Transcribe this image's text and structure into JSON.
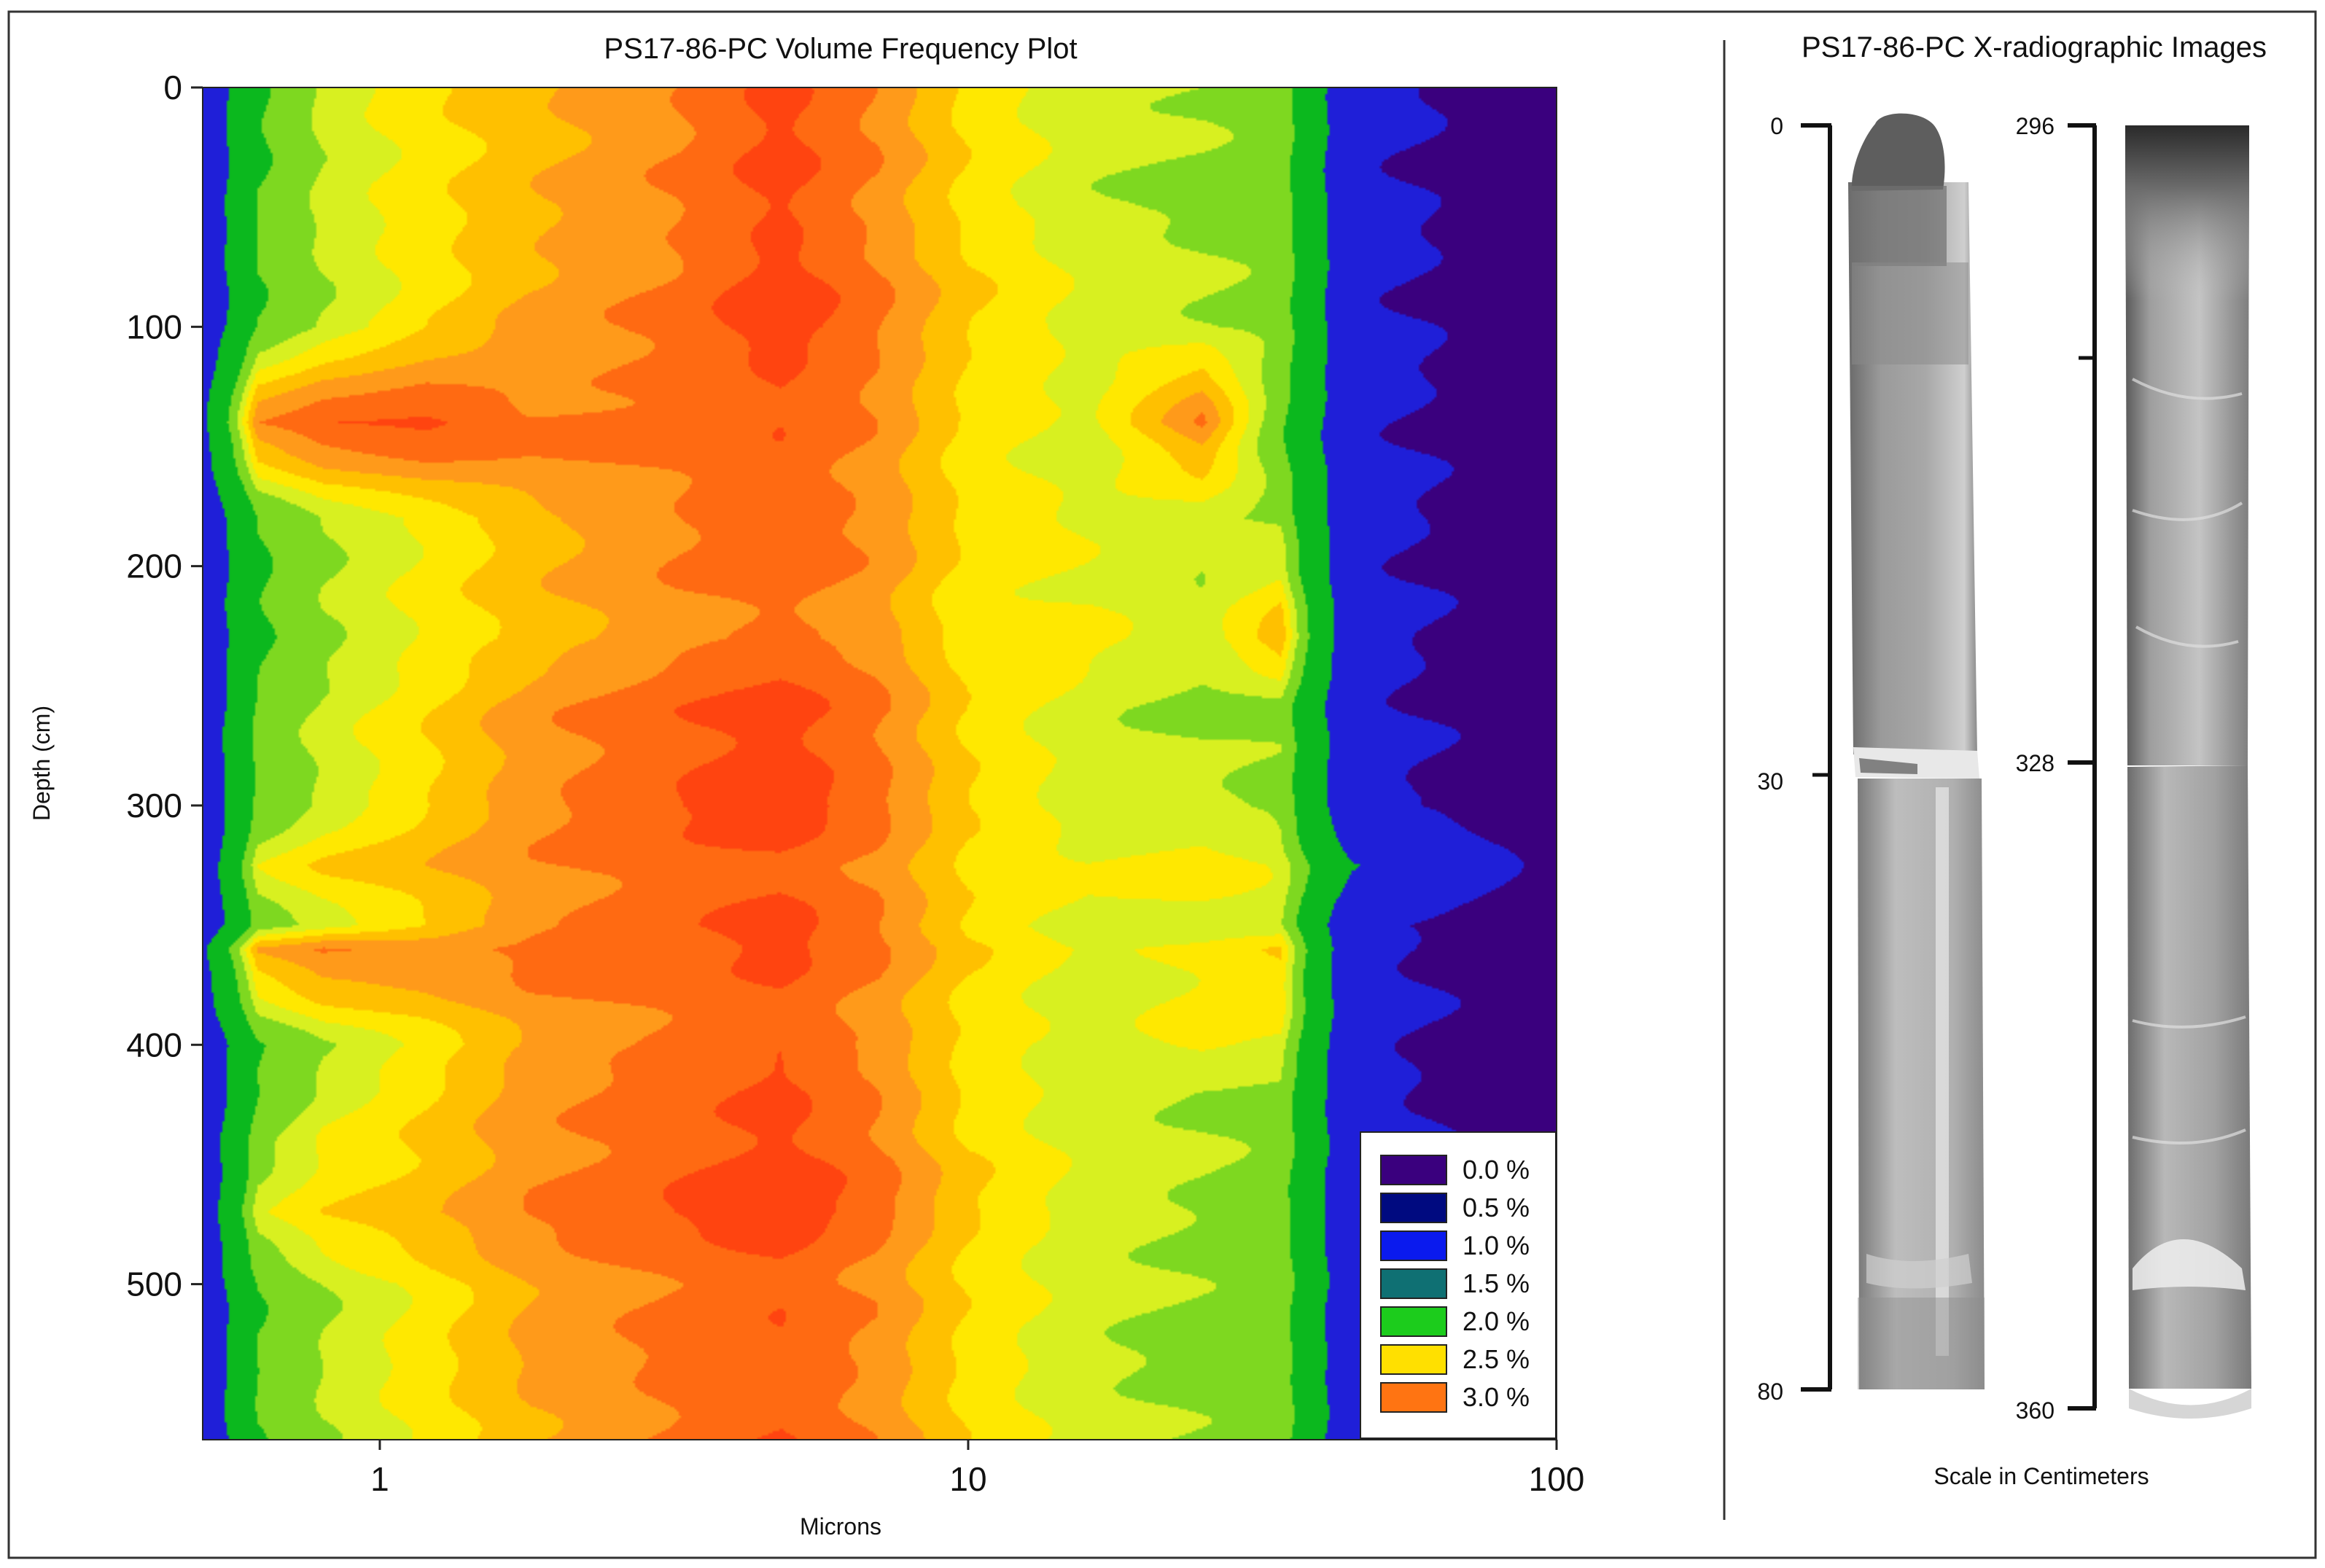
{
  "contour_panel": {
    "title": "PS17-86-PC Volume Frequency Plot",
    "xlabel": "Microns",
    "ylabel": "Depth (cm)"
  },
  "xray_panel": {
    "title": "PS17-86-PC X-radiographic Images",
    "scale_caption": "Scale in Centimeters",
    "left_core": {
      "top_label": "0",
      "mid_label": "30",
      "bottom_label": "80"
    },
    "right_core": {
      "top_label": "296",
      "mid_label": "328",
      "bottom_label": "360"
    }
  },
  "chart_data": {
    "type": "heatmap",
    "title": "PS17-86-PC Volume Frequency Plot",
    "xlabel": "Microns",
    "ylabel": "Depth (cm)",
    "x_scale": "log",
    "xlim": [
      0.5,
      100
    ],
    "ylim": [
      565,
      0
    ],
    "x_ticks": [
      "1",
      "10",
      "100"
    ],
    "x_tick_values": [
      1,
      10,
      100
    ],
    "y_ticks": [
      "0",
      "100",
      "200",
      "300",
      "400",
      "500"
    ],
    "y_tick_values": [
      0,
      100,
      200,
      300,
      400,
      500
    ],
    "legend_placement": "bottom-right",
    "legend": [
      {
        "label": "0.0 %",
        "color": "#3a007e"
      },
      {
        "label": "0.5 %",
        "color": "#000a80"
      },
      {
        "label": "1.0 %",
        "color": "#0a1aee"
      },
      {
        "label": "1.5 %",
        "color": "#0f7073"
      },
      {
        "label": "2.0 %",
        "color": "#1ccc1c"
      },
      {
        "label": "2.5 %",
        "color": "#ffe000"
      },
      {
        "label": "3.0 %",
        "color": "#ff7412"
      }
    ],
    "band_colors": [
      "#3a007e",
      "#1f1fd8",
      "#0bb81e",
      "#7ed820",
      "#d8f020",
      "#ffe800",
      "#ffc000",
      "#ff9a1a",
      "#ff6a12",
      "#ff4410"
    ],
    "grain_size_microns": [
      0.5,
      0.62,
      0.8,
      1.2,
      1.8,
      3.2,
      4.8,
      7.0,
      10.0,
      16.0,
      25.0,
      34.0,
      45.0,
      100.0
    ],
    "depth_cm": [
      0,
      50,
      100,
      140,
      180,
      230,
      260,
      300,
      325,
      350,
      360,
      400,
      420,
      470,
      500,
      560
    ],
    "profiles": [
      [
        0.3,
        1.6,
        2.1,
        2.4,
        2.6,
        2.85,
        3.15,
        2.85,
        2.4,
        2.1,
        2.05,
        1.95,
        0.3,
        0.0
      ],
      [
        0.3,
        1.7,
        2.1,
        2.35,
        2.6,
        2.85,
        3.1,
        2.8,
        2.4,
        2.1,
        2.0,
        1.95,
        0.3,
        0.0
      ],
      [
        0.3,
        1.7,
        2.05,
        2.4,
        2.7,
        2.9,
        3.2,
        2.9,
        2.5,
        2.2,
        2.1,
        2.0,
        0.3,
        0.0
      ],
      [
        0.8,
        2.9,
        3.1,
        3.15,
        2.9,
        2.9,
        3.0,
        2.8,
        2.35,
        2.15,
        2.9,
        1.8,
        0.3,
        0.0
      ],
      [
        0.3,
        1.7,
        2.05,
        2.3,
        2.6,
        2.85,
        3.0,
        2.8,
        2.4,
        2.2,
        2.1,
        2.0,
        0.3,
        0.0
      ],
      [
        0.3,
        1.6,
        2.0,
        2.3,
        2.55,
        2.8,
        2.9,
        2.75,
        2.3,
        2.3,
        2.1,
        2.6,
        0.3,
        0.0
      ],
      [
        0.3,
        1.8,
        2.1,
        2.4,
        2.75,
        3.0,
        3.15,
        2.9,
        2.45,
        2.15,
        2.0,
        2.0,
        0.3,
        0.0
      ],
      [
        0.3,
        1.8,
        2.1,
        2.45,
        2.8,
        3.05,
        3.2,
        2.9,
        2.45,
        2.1,
        2.1,
        2.0,
        0.3,
        0.0
      ],
      [
        0.3,
        2.2,
        2.45,
        2.6,
        2.8,
        2.95,
        3.0,
        2.85,
        2.45,
        2.3,
        2.4,
        2.2,
        0.9,
        0.0
      ],
      [
        0.3,
        1.9,
        2.15,
        2.45,
        2.8,
        3.0,
        3.15,
        2.85,
        2.4,
        2.1,
        2.1,
        2.1,
        0.3,
        0.0
      ],
      [
        0.8,
        2.7,
        2.9,
        2.8,
        2.9,
        2.95,
        3.1,
        2.9,
        2.5,
        2.2,
        2.3,
        2.5,
        0.3,
        0.0
      ],
      [
        0.3,
        1.7,
        2.05,
        2.35,
        2.7,
        2.9,
        3.0,
        2.75,
        2.35,
        2.1,
        2.3,
        2.2,
        0.3,
        0.0
      ],
      [
        0.3,
        1.7,
        2.1,
        2.4,
        2.75,
        2.95,
        3.1,
        2.85,
        2.4,
        2.15,
        2.05,
        2.0,
        0.3,
        0.0
      ],
      [
        0.4,
        2.2,
        2.45,
        2.6,
        2.85,
        3.05,
        3.2,
        2.95,
        2.5,
        2.15,
        2.05,
        1.9,
        0.3,
        0.0
      ],
      [
        0.3,
        1.7,
        2.05,
        2.35,
        2.7,
        2.9,
        3.0,
        2.8,
        2.4,
        2.1,
        2.0,
        1.95,
        0.3,
        0.0
      ],
      [
        0.3,
        1.7,
        2.05,
        2.35,
        2.65,
        2.9,
        3.05,
        2.8,
        2.4,
        2.1,
        2.0,
        1.95,
        0.3,
        0.0
      ]
    ]
  }
}
